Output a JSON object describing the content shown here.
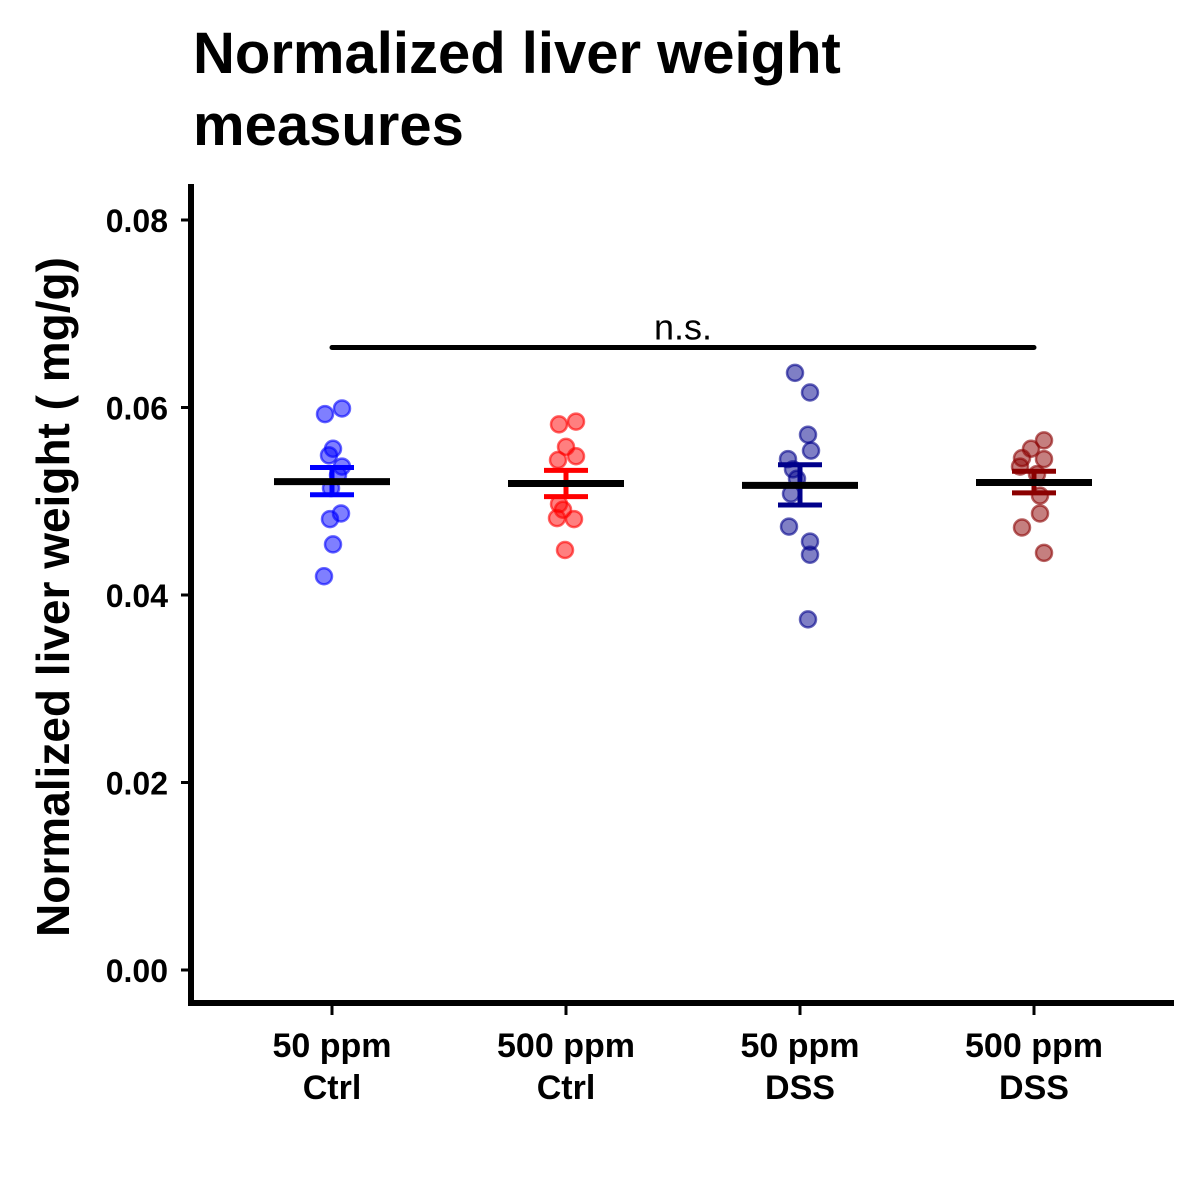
{
  "chart_data": {
    "type": "scatter",
    "title_lines": [
      "Normalized liver weight",
      "measures"
    ],
    "xlabel": "",
    "ylabel": "Normalized liver weight ( mg/g)",
    "ylim": [
      0,
      0.082
    ],
    "yticks": [
      0.0,
      0.02,
      0.04,
      0.06,
      0.08
    ],
    "ytick_labels": [
      "0.00",
      "0.02",
      "0.04",
      "0.06",
      "0.08"
    ],
    "grid": false,
    "legend": "none",
    "categories": [
      {
        "line1": "50 ppm",
        "line2": "Ctrl"
      },
      {
        "line1": "500 ppm",
        "line2": "Ctrl"
      },
      {
        "line1": "50 ppm",
        "line2": "DSS"
      },
      {
        "line1": "500 ppm",
        "line2": "DSS"
      }
    ],
    "groups": [
      {
        "color": "#0000ff",
        "mean": 0.0521,
        "sem_low": 0.0507,
        "sem_high": 0.0536,
        "points": [
          {
            "j": 10,
            "y": 0.0599
          },
          {
            "j": -7,
            "y": 0.0593
          },
          {
            "j": 1,
            "y": 0.0556
          },
          {
            "j": -3,
            "y": 0.0549
          },
          {
            "j": 10,
            "y": 0.0537
          },
          {
            "j": 6,
            "y": 0.0528
          },
          {
            "j": -1,
            "y": 0.0514
          },
          {
            "j": 9,
            "y": 0.0487
          },
          {
            "j": -2,
            "y": 0.0481
          },
          {
            "j": 1,
            "y": 0.0454
          },
          {
            "j": -8,
            "y": 0.042
          }
        ]
      },
      {
        "color": "#ff0000",
        "mean": 0.0519,
        "sem_low": 0.0505,
        "sem_high": 0.0533,
        "points": [
          {
            "j": 10,
            "y": 0.0585
          },
          {
            "j": -7,
            "y": 0.0582
          },
          {
            "j": 0,
            "y": 0.0558
          },
          {
            "j": 10,
            "y": 0.0548
          },
          {
            "j": -8,
            "y": 0.0544
          },
          {
            "j": -7,
            "y": 0.0497
          },
          {
            "j": -3,
            "y": 0.0491
          },
          {
            "j": -9,
            "y": 0.0482
          },
          {
            "j": 8,
            "y": 0.0481
          },
          {
            "j": -1,
            "y": 0.0448
          }
        ]
      },
      {
        "color": "#00008b",
        "mean": 0.0517,
        "sem_low": 0.0496,
        "sem_high": 0.0539,
        "points": [
          {
            "j": -5,
            "y": 0.0637
          },
          {
            "j": 10,
            "y": 0.0616
          },
          {
            "j": 8,
            "y": 0.0571
          },
          {
            "j": 11,
            "y": 0.0554
          },
          {
            "j": -12,
            "y": 0.0545
          },
          {
            "j": -7,
            "y": 0.0534
          },
          {
            "j": -3,
            "y": 0.0524
          },
          {
            "j": -9,
            "y": 0.0508
          },
          {
            "j": -11,
            "y": 0.0473
          },
          {
            "j": 10,
            "y": 0.0457
          },
          {
            "j": 10,
            "y": 0.0443
          },
          {
            "j": 8,
            "y": 0.0374
          }
        ]
      },
      {
        "color": "#8b0000",
        "mean": 0.052,
        "sem_low": 0.0509,
        "sem_high": 0.0532,
        "points": [
          {
            "j": 10,
            "y": 0.0565
          },
          {
            "j": -3,
            "y": 0.0556
          },
          {
            "j": -12,
            "y": 0.0546
          },
          {
            "j": 10,
            "y": 0.0545
          },
          {
            "j": -14,
            "y": 0.0537
          },
          {
            "j": 3,
            "y": 0.0529
          },
          {
            "j": 6,
            "y": 0.0506
          },
          {
            "j": 6,
            "y": 0.0487
          },
          {
            "j": -12,
            "y": 0.0472
          },
          {
            "j": 10,
            "y": 0.0445
          }
        ]
      }
    ],
    "bracket": {
      "from_group": 0,
      "to_group": 3,
      "y": 0.0664,
      "label": "n.s."
    }
  }
}
